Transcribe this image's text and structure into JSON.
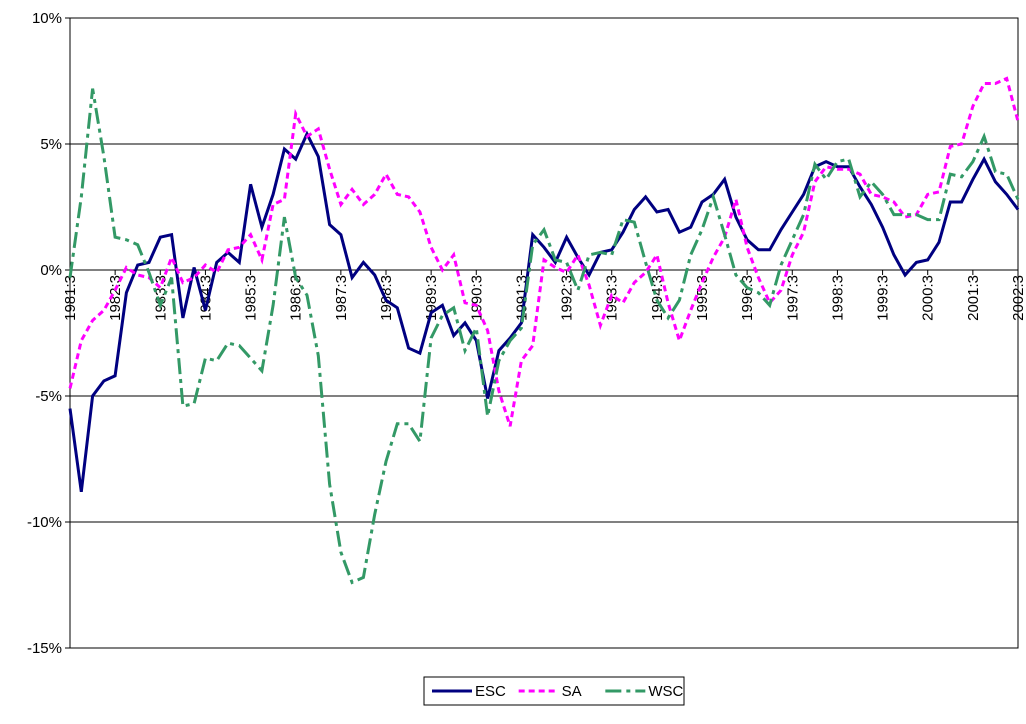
{
  "chart_data": {
    "type": "line",
    "categories": [
      "1981:3",
      null,
      null,
      null,
      "1982:3",
      null,
      null,
      null,
      "1983:3",
      null,
      null,
      null,
      "1984:3",
      null,
      null,
      null,
      "1985:3",
      null,
      null,
      null,
      "1986:3",
      null,
      null,
      null,
      "1987:3",
      null,
      null,
      null,
      "1988:3",
      null,
      null,
      null,
      "1989:3",
      null,
      null,
      null,
      "1990:3",
      null,
      null,
      null,
      "1991:3",
      null,
      null,
      null,
      "1992:3",
      null,
      null,
      null,
      "1993:3",
      null,
      null,
      null,
      "1994:3",
      null,
      null,
      null,
      "1995:3",
      null,
      null,
      null,
      "1996:3",
      null,
      null,
      null,
      "1997:3",
      null,
      null,
      null,
      "1998:3",
      null,
      null,
      null,
      "1999:3",
      null,
      null,
      null,
      "2000:3",
      null,
      null,
      null,
      "2001:3",
      null,
      null,
      null,
      "2002:3"
    ],
    "series": [
      {
        "name": "ESC",
        "color": "#000080",
        "dash": "solid",
        "values": [
          -5.5,
          -8.8,
          -5.0,
          -4.4,
          -4.2,
          -0.9,
          0.2,
          0.3,
          1.3,
          1.4,
          -1.9,
          0.1,
          -1.6,
          0.3,
          0.7,
          0.3,
          3.4,
          1.7,
          3.0,
          4.8,
          4.4,
          5.4,
          4.5,
          1.8,
          1.4,
          -0.3,
          0.3,
          -0.2,
          -1.2,
          -1.5,
          -3.1,
          -3.3,
          -1.7,
          -1.4,
          -2.6,
          -2.1,
          -2.8,
          -5.1,
          -3.2,
          -2.7,
          -2.1,
          1.4,
          0.9,
          0.3,
          1.3,
          0.5,
          -0.2,
          0.7,
          0.8,
          1.5,
          2.4,
          2.9,
          2.3,
          2.4,
          1.5,
          1.7,
          2.7,
          3.0,
          3.6,
          2.1,
          1.2,
          0.8,
          0.8,
          1.6,
          2.3,
          3.0,
          4.1,
          4.3,
          4.1,
          4.1,
          3.3,
          2.6,
          1.7,
          0.6,
          -0.2,
          0.3,
          0.4,
          1.1,
          2.7,
          2.7,
          3.6,
          4.4,
          3.5,
          3.0,
          2.4
        ]
      },
      {
        "name": "SA",
        "color": "#ff00ff",
        "dash": "dotted",
        "values": [
          -4.7,
          -2.8,
          -2.0,
          -1.6,
          -0.8,
          0.1,
          -0.2,
          -0.3,
          -0.7,
          0.5,
          -0.5,
          -0.3,
          0.2,
          -0.1,
          0.8,
          0.9,
          1.4,
          0.4,
          2.6,
          2.8,
          6.2,
          5.3,
          5.6,
          4.0,
          2.6,
          3.2,
          2.6,
          3.0,
          3.8,
          3.0,
          2.9,
          2.3,
          0.9,
          0.0,
          0.6,
          -1.3,
          -1.4,
          -2.4,
          -4.8,
          -6.2,
          -3.6,
          -3.0,
          0.4,
          0.1,
          -0.1,
          0.6,
          -0.6,
          -2.2,
          -1.0,
          -1.3,
          -0.5,
          -0.1,
          0.6,
          -1.3,
          -2.8,
          -1.6,
          -0.5,
          0.5,
          1.3,
          2.8,
          0.9,
          -0.3,
          -1.3,
          -0.8,
          0.6,
          1.5,
          3.5,
          4.1,
          4.0,
          4.0,
          3.8,
          3.0,
          2.9,
          2.7,
          2.1,
          2.2,
          3.0,
          3.1,
          4.9,
          5.0,
          6.5,
          7.4,
          7.4,
          7.6,
          5.9
        ]
      },
      {
        "name": "WSC",
        "color": "#339966",
        "dash": "dashdot",
        "values": [
          -0.3,
          2.9,
          7.2,
          4.5,
          1.3,
          1.2,
          1.0,
          -0.1,
          -1.4,
          -0.3,
          -5.4,
          -5.3,
          -3.5,
          -3.6,
          -2.9,
          -3.0,
          -3.5,
          -4.0,
          -1.4,
          2.1,
          -0.3,
          -1.0,
          -3.4,
          -8.5,
          -11.2,
          -12.4,
          -12.2,
          -9.7,
          -7.6,
          -6.1,
          -6.1,
          -6.8,
          -2.7,
          -1.8,
          -1.5,
          -3.2,
          -2.3,
          -5.8,
          -3.6,
          -2.8,
          -2.3,
          1.0,
          1.6,
          0.4,
          0.3,
          -0.8,
          0.6,
          0.7,
          0.6,
          2.0,
          1.9,
          0.3,
          -1.2,
          -1.9,
          -1.2,
          0.6,
          1.6,
          2.9,
          1.4,
          -0.2,
          -0.7,
          -0.9,
          -1.4,
          0.2,
          1.2,
          2.2,
          4.2,
          3.6,
          4.3,
          4.4,
          2.9,
          3.5,
          3.0,
          2.2,
          2.2,
          2.2,
          2.0,
          2.0,
          3.8,
          3.7,
          4.3,
          5.3,
          3.9,
          3.8,
          2.8
        ]
      }
    ],
    "ylim": [
      -15,
      10
    ],
    "yticks": [
      {
        "value": -15,
        "label": "-15%"
      },
      {
        "value": -10,
        "label": "-10%"
      },
      {
        "value": -5,
        "label": "-5%"
      },
      {
        "value": 0,
        "label": "0%"
      },
      {
        "value": 5,
        "label": "5%"
      },
      {
        "value": 10,
        "label": "10%"
      }
    ],
    "grid": true,
    "legend": "bottom"
  }
}
